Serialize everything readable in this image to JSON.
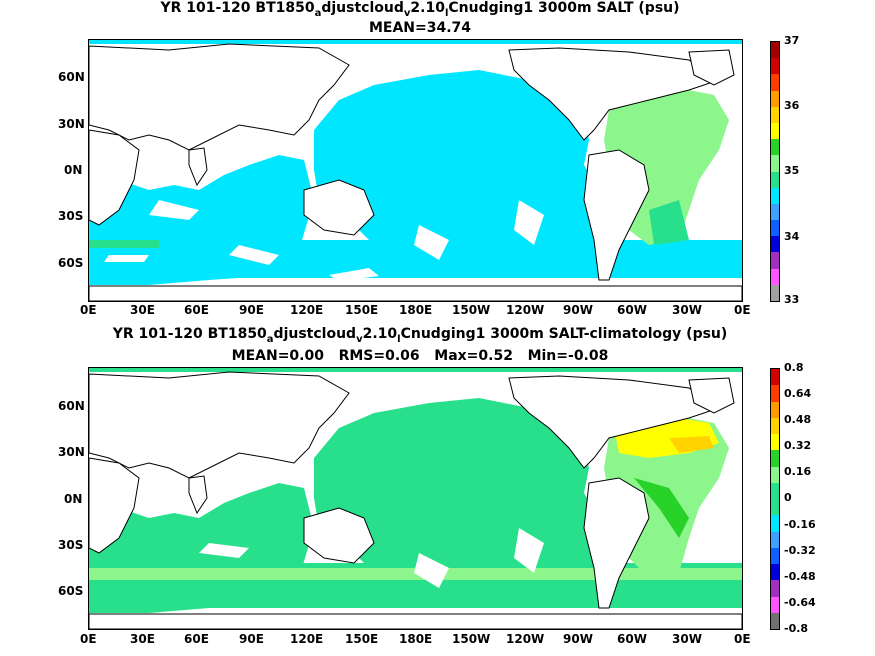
{
  "panel_top": {
    "title_parts": {
      "pre": "YR 101-120 BT1850",
      "s1": "a",
      "mid1": "djustcloud",
      "s2": "v",
      "mid2": "2.10",
      "s3": "l",
      "post": "Cnudging1 3000m SALT (psu)"
    },
    "subtitle": "MEAN=34.74",
    "colorbar": {
      "labels": [
        "37",
        "36",
        "35",
        "34",
        "33"
      ],
      "colors": [
        "#a0a0a0",
        "#ff55ff",
        "#a030c0",
        "#0000dd",
        "#1060ff",
        "#40a0ff",
        "#00e6ff",
        "#28e08c",
        "#8cf58c",
        "#28d228",
        "#ffff00",
        "#ffd200",
        "#ff9a00",
        "#ff3c00",
        "#d20000",
        "#a00000"
      ]
    }
  },
  "panel_bottom": {
    "title_parts": {
      "pre": "YR 101-120 BT1850",
      "s1": "a",
      "mid1": "djustcloud",
      "s2": "v",
      "mid2": "2.10",
      "s3": "l",
      "post": "Cnudging1 3000m SALT-climatology (psu)"
    },
    "subtitle": "MEAN=0.00   RMS=0.06   Max=0.52   Min=-0.08",
    "colorbar": {
      "labels": [
        "0.8",
        "0.64",
        "0.48",
        "0.32",
        "0.16",
        "0",
        "-0.16",
        "-0.32",
        "-0.48",
        "-0.64",
        "-0.8"
      ],
      "colors": [
        "#707070",
        "#ff55ff",
        "#a030c0",
        "#0000dd",
        "#1060ff",
        "#40a0ff",
        "#00e6ff",
        "#28e08c",
        "#28e08c",
        "#8cf58c",
        "#28d228",
        "#ffff00",
        "#ffd200",
        "#ff9a00",
        "#ff3c00",
        "#d20000"
      ]
    }
  },
  "axes": {
    "x_ticks": [
      "0E",
      "30E",
      "60E",
      "90E",
      "120E",
      "150E",
      "180E",
      "150W",
      "120W",
      "90W",
      "60W",
      "30W",
      "0E"
    ],
    "y_ticks": [
      "60N",
      "30N",
      "0N",
      "30S",
      "60S"
    ]
  },
  "map_colors": {
    "land": "#ffffff",
    "coast": "#000000",
    "ocean_top": "#00e6ff",
    "ocean_bottom": "#28e08c",
    "anomaly_pos": "#8cf58c",
    "anomaly_high": "#ffff00"
  }
}
